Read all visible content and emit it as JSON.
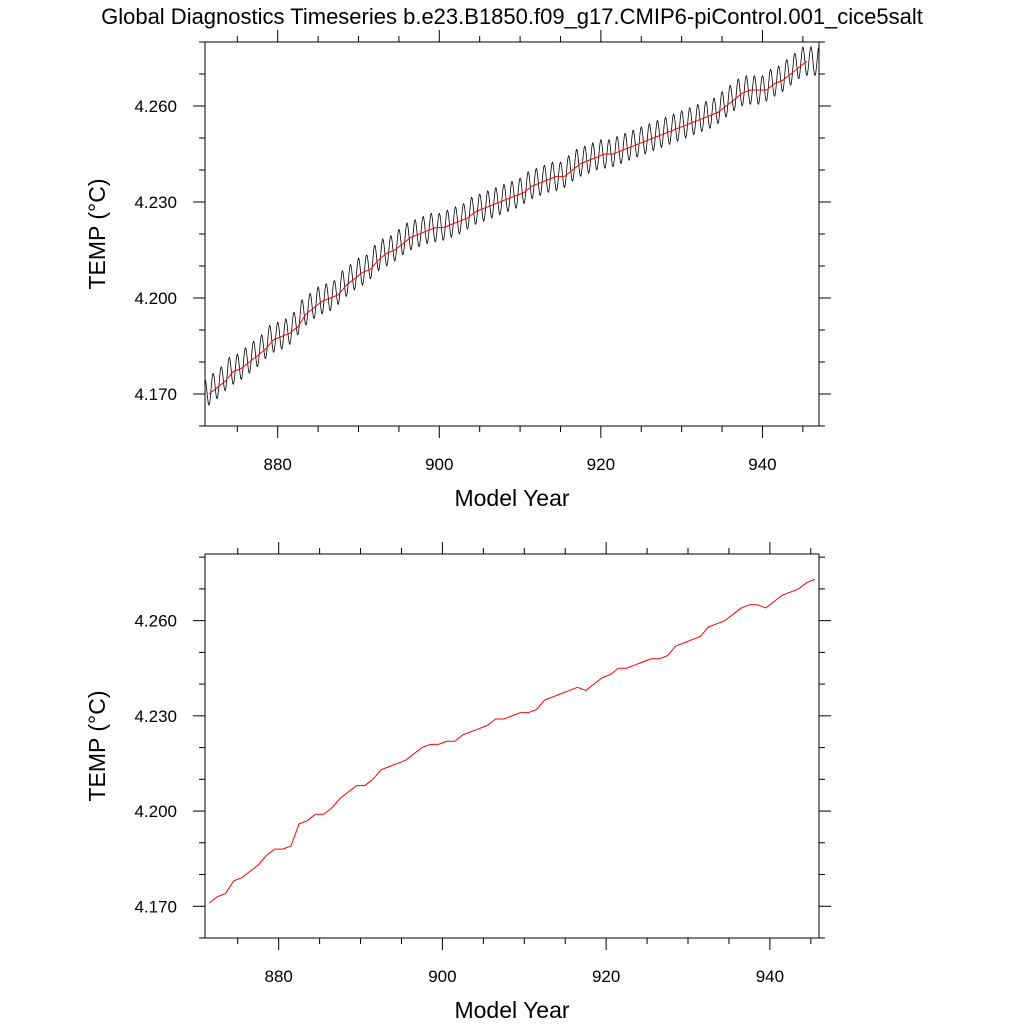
{
  "figure_title": "Global Diagnostics Timeseries b.e23.B1850.f09_g17.CMIP6-piControl.001_cice5salt",
  "colors": {
    "monthly": "#000000",
    "annual": "#ff0000",
    "axis": "#000000",
    "background": "#ffffff"
  },
  "chart_data": [
    {
      "type": "line",
      "title": "",
      "xlabel": "Model Year",
      "ylabel": "TEMP (°C)",
      "xlim": [
        871,
        947
      ],
      "ylim": [
        4.16,
        4.28
      ],
      "xticks": [
        880,
        900,
        920,
        940
      ],
      "xtick_labels": [
        "880",
        "900",
        "920",
        "940"
      ],
      "yticks": [
        4.17,
        4.2,
        4.23,
        4.26
      ],
      "ytick_labels": [
        "4.170",
        "4.200",
        "4.230",
        "4.260"
      ],
      "grid": false,
      "series": [
        {
          "style": "monthly",
          "color": "#000000",
          "seasonal_amplitude": 0.0045,
          "x": [
            871.0,
            872.0,
            873.0,
            874.0,
            875.0,
            876.0,
            877.0,
            878.0,
            879.0,
            880.0,
            881.0,
            882.0,
            883.0,
            884.0,
            885.0,
            886.0,
            887.0,
            888.0,
            889.0,
            890.0,
            891.0,
            892.0,
            893.0,
            894.0,
            895.0,
            896.0,
            897.0,
            898.0,
            899.0,
            900.0,
            901.0,
            902.0,
            903.0,
            904.0,
            905.0,
            906.0,
            907.0,
            908.0,
            909.0,
            910.0,
            911.0,
            912.0,
            913.0,
            914.0,
            915.0,
            916.0,
            917.0,
            918.0,
            919.0,
            920.0,
            921.0,
            922.0,
            923.0,
            924.0,
            925.0,
            926.0,
            927.0,
            928.0,
            929.0,
            930.0,
            931.0,
            932.0,
            933.0,
            934.0,
            935.0,
            936.0,
            937.0,
            938.0,
            939.0,
            940.0,
            941.0,
            942.0,
            943.0,
            944.0,
            945.0,
            946.0,
            947.0
          ],
          "trend": [
            4.17,
            4.172,
            4.174,
            4.177,
            4.178,
            4.18,
            4.182,
            4.184,
            4.187,
            4.188,
            4.189,
            4.191,
            4.195,
            4.197,
            4.199,
            4.2,
            4.201,
            4.204,
            4.206,
            4.208,
            4.209,
            4.212,
            4.214,
            4.215,
            4.217,
            4.219,
            4.22,
            4.221,
            4.222,
            4.222,
            4.223,
            4.224,
            4.225,
            4.227,
            4.228,
            4.229,
            4.23,
            4.231,
            4.232,
            4.233,
            4.235,
            4.236,
            4.237,
            4.238,
            4.238,
            4.24,
            4.242,
            4.243,
            4.244,
            4.245,
            4.245,
            4.246,
            4.247,
            4.248,
            4.249,
            4.25,
            4.251,
            4.252,
            4.253,
            4.254,
            4.255,
            4.256,
            4.257,
            4.258,
            4.26,
            4.262,
            4.264,
            4.265,
            4.265,
            4.265,
            4.267,
            4.268,
            4.27,
            4.272,
            4.274,
            4.274,
            4.274
          ]
        },
        {
          "style": "annual",
          "color": "#ff0000",
          "x": [
            871.5,
            872.5,
            873.5,
            874.5,
            875.5,
            876.5,
            877.5,
            878.5,
            879.5,
            880.5,
            881.5,
            882.5,
            883.5,
            884.5,
            885.5,
            886.5,
            887.5,
            888.5,
            889.5,
            890.5,
            891.5,
            892.5,
            893.5,
            894.5,
            895.5,
            896.5,
            897.5,
            898.5,
            899.5,
            900.5,
            901.5,
            902.5,
            903.5,
            904.5,
            905.5,
            906.5,
            907.5,
            908.5,
            909.5,
            910.5,
            911.5,
            912.5,
            913.5,
            914.5,
            915.5,
            916.5,
            917.5,
            918.5,
            919.5,
            920.5,
            921.5,
            922.5,
            923.5,
            924.5,
            925.5,
            926.5,
            927.5,
            928.5,
            929.5,
            930.5,
            931.5,
            932.5,
            933.5,
            934.5,
            935.5,
            936.5,
            937.5,
            938.5,
            939.5,
            940.5,
            941.5,
            942.5,
            943.5,
            944.5,
            945.5
          ],
          "values": [
            4.17,
            4.172,
            4.174,
            4.177,
            4.178,
            4.18,
            4.182,
            4.184,
            4.187,
            4.188,
            4.189,
            4.191,
            4.195,
            4.197,
            4.199,
            4.2,
            4.201,
            4.204,
            4.206,
            4.208,
            4.209,
            4.212,
            4.214,
            4.215,
            4.217,
            4.219,
            4.22,
            4.221,
            4.222,
            4.222,
            4.223,
            4.224,
            4.225,
            4.227,
            4.228,
            4.229,
            4.23,
            4.231,
            4.232,
            4.233,
            4.235,
            4.236,
            4.237,
            4.238,
            4.238,
            4.24,
            4.242,
            4.243,
            4.244,
            4.245,
            4.245,
            4.246,
            4.247,
            4.248,
            4.249,
            4.25,
            4.251,
            4.252,
            4.253,
            4.254,
            4.255,
            4.256,
            4.257,
            4.258,
            4.26,
            4.262,
            4.264,
            4.265,
            4.265,
            4.265,
            4.267,
            4.268,
            4.27,
            4.272,
            4.274
          ]
        }
      ]
    },
    {
      "type": "line",
      "title": "",
      "xlabel": "Model Year",
      "ylabel": "TEMP (°C)",
      "xlim": [
        871,
        946
      ],
      "ylim": [
        4.16,
        4.281
      ],
      "xticks": [
        880,
        900,
        920,
        940
      ],
      "xtick_labels": [
        "880",
        "900",
        "920",
        "940"
      ],
      "yticks": [
        4.17,
        4.2,
        4.23,
        4.26
      ],
      "ytick_labels": [
        "4.170",
        "4.200",
        "4.230",
        "4.260"
      ],
      "grid": false,
      "series": [
        {
          "style": "annual",
          "color": "#ff0000",
          "x": [
            871.5,
            872.5,
            873.5,
            874.5,
            875.5,
            876.5,
            877.5,
            878.5,
            879.5,
            880.5,
            881.5,
            882.5,
            883.5,
            884.5,
            885.5,
            886.5,
            887.5,
            888.5,
            889.5,
            890.5,
            891.5,
            892.5,
            893.5,
            894.5,
            895.5,
            896.5,
            897.5,
            898.5,
            899.5,
            900.5,
            901.5,
            902.5,
            903.5,
            904.5,
            905.5,
            906.5,
            907.5,
            908.5,
            909.5,
            910.5,
            911.5,
            912.5,
            913.5,
            914.5,
            915.5,
            916.5,
            917.5,
            918.5,
            919.5,
            920.5,
            921.5,
            922.5,
            923.5,
            924.5,
            925.5,
            926.5,
            927.5,
            928.5,
            929.5,
            930.5,
            931.5,
            932.5,
            933.5,
            934.5,
            935.5,
            936.5,
            937.5,
            938.5,
            939.5,
            940.5,
            941.5,
            942.5,
            943.5,
            944.5,
            945.5
          ],
          "values": [
            4.171,
            4.173,
            4.174,
            4.178,
            4.179,
            4.181,
            4.183,
            4.186,
            4.188,
            4.188,
            4.189,
            4.196,
            4.197,
            4.199,
            4.199,
            4.201,
            4.204,
            4.206,
            4.208,
            4.208,
            4.21,
            4.213,
            4.214,
            4.215,
            4.216,
            4.218,
            4.22,
            4.221,
            4.221,
            4.222,
            4.222,
            4.224,
            4.225,
            4.226,
            4.227,
            4.229,
            4.229,
            4.23,
            4.231,
            4.231,
            4.232,
            4.235,
            4.236,
            4.237,
            4.238,
            4.239,
            4.238,
            4.24,
            4.242,
            4.243,
            4.245,
            4.245,
            4.246,
            4.247,
            4.248,
            4.248,
            4.249,
            4.252,
            4.253,
            4.254,
            4.255,
            4.258,
            4.259,
            4.26,
            4.262,
            4.264,
            4.265,
            4.265,
            4.264,
            4.266,
            4.268,
            4.269,
            4.27,
            4.272,
            4.273
          ]
        }
      ]
    }
  ]
}
